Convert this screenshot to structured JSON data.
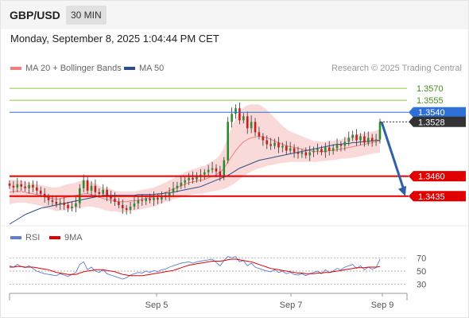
{
  "header": {
    "pair": "GBP/USD",
    "timeframe": "30 MIN"
  },
  "datetime": "Monday, September 8, 2025 1:04:44 PM CET",
  "legend": {
    "main": [
      {
        "label": "MA 20 + Bollinger Bands",
        "color": "#f08080"
      },
      {
        "label": "MA 50",
        "color": "#2c4f8c"
      }
    ],
    "rsi": [
      {
        "label": "RSI",
        "color": "#5b7fd4"
      },
      {
        "label": "9MA",
        "color": "#e00000"
      }
    ]
  },
  "credit": "Research © 2025 Trading Central",
  "chart_data": {
    "type": "candlestick",
    "ylim": [
      1.34,
      1.3585
    ],
    "levels": [
      {
        "value": 1.357,
        "label": "1.3570",
        "color": "#8cc63f",
        "kind": "line"
      },
      {
        "value": 1.3555,
        "label": "1.3555",
        "color": "#8cc63f",
        "kind": "line"
      },
      {
        "value": 1.354,
        "label": "1.3540",
        "color": "#2e6fd8",
        "kind": "tag"
      },
      {
        "value": 1.3528,
        "label": "1.3528",
        "color": "#333333",
        "kind": "tag"
      },
      {
        "value": 1.346,
        "label": "1.3460",
        "color": "#e00000",
        "kind": "tag"
      },
      {
        "value": 1.3435,
        "label": "1.3435",
        "color": "#e00000",
        "kind": "tag"
      }
    ],
    "x_ticks": [
      "Sep 5",
      "Sep 7",
      "Sep 9"
    ],
    "closes": [
      1.3448,
      1.3446,
      1.345,
      1.3447,
      1.3445,
      1.3449,
      1.3446,
      1.3442,
      1.3438,
      1.3434,
      1.343,
      1.3428,
      1.3425,
      1.3427,
      1.3424,
      1.342,
      1.3422,
      1.3426,
      1.3445,
      1.3455,
      1.3442,
      1.3448,
      1.344,
      1.3438,
      1.3443,
      1.3436,
      1.3432,
      1.3428,
      1.3424,
      1.342,
      1.3418,
      1.3422,
      1.3426,
      1.343,
      1.3429,
      1.3432,
      1.343,
      1.3433,
      1.3431,
      1.3434,
      1.3436,
      1.344,
      1.3445,
      1.3448,
      1.3452,
      1.3455,
      1.3458,
      1.3456,
      1.346,
      1.3462,
      1.3465,
      1.3468,
      1.347,
      1.3466,
      1.346,
      1.348,
      1.3528,
      1.3538,
      1.3545,
      1.353,
      1.3535,
      1.352,
      1.3528,
      1.3515,
      1.351,
      1.3505,
      1.35,
      1.3498,
      1.3502,
      1.3496,
      1.3498,
      1.3492,
      1.3495,
      1.349,
      1.3488,
      1.349,
      1.3486,
      1.349,
      1.3492,
      1.3494,
      1.349,
      1.3496,
      1.3492,
      1.3495,
      1.35,
      1.3498,
      1.3503,
      1.3508,
      1.3512,
      1.3505,
      1.351,
      1.3502,
      1.3508,
      1.3504,
      1.3506,
      1.3528
    ],
    "ma50": [
      1.34,
      1.3403,
      1.3406,
      1.3409,
      1.3412,
      1.3414,
      1.3416,
      1.3418,
      1.342,
      1.3421,
      1.3422,
      1.3423,
      1.3424,
      1.3425,
      1.3426,
      1.3427,
      1.3428,
      1.3429,
      1.343,
      1.3431,
      1.3432,
      1.3433,
      1.3434,
      1.3435,
      1.3436,
      1.3436,
      1.3436,
      1.3436,
      1.3436,
      1.3436,
      1.3436,
      1.3436,
      1.3436,
      1.3437,
      1.3437,
      1.3437,
      1.3437,
      1.3437,
      1.3438,
      1.3438,
      1.3439,
      1.3439,
      1.344,
      1.3441,
      1.3442,
      1.3443,
      1.3444,
      1.3445,
      1.3446,
      1.3447,
      1.3449,
      1.3451,
      1.3453,
      1.3455,
      1.3457,
      1.3459,
      1.3461,
      1.3464,
      1.3467,
      1.347,
      1.3472,
      1.3474,
      1.3476,
      1.3478,
      1.348,
      1.3481,
      1.3482,
      1.3483,
      1.3484,
      1.3485,
      1.3486,
      1.3487,
      1.3488,
      1.3489,
      1.349,
      1.3491,
      1.3492,
      1.3493,
      1.3494,
      1.3495,
      1.3496,
      1.3497,
      1.3498,
      1.3499,
      1.35,
      1.35,
      1.3501,
      1.3501,
      1.3502,
      1.3502,
      1.3503,
      1.3503,
      1.3504,
      1.3504,
      1.3505,
      1.3505
    ],
    "ma20": [
      1.344,
      1.3441,
      1.3441,
      1.3441,
      1.344,
      1.3439,
      1.3438,
      1.3437,
      1.3436,
      1.3434,
      1.3433,
      1.3432,
      1.3431,
      1.3432,
      1.3433,
      1.3434,
      1.3435,
      1.3436,
      1.3437,
      1.3438,
      1.3438,
      1.3437,
      1.3436,
      1.3434,
      1.3432,
      1.3431,
      1.343,
      1.3429,
      1.3428,
      1.3428,
      1.3428,
      1.3429,
      1.3429,
      1.343,
      1.3431,
      1.3432,
      1.3433,
      1.3434,
      1.3436,
      1.3438,
      1.344,
      1.3442,
      1.3444,
      1.3446,
      1.3448,
      1.345,
      1.3452,
      1.3453,
      1.3454,
      1.3455,
      1.3456,
      1.3458,
      1.346,
      1.3462,
      1.3465,
      1.347,
      1.3478,
      1.3485,
      1.3492,
      1.3498,
      1.3503,
      1.3506,
      1.3508,
      1.3509,
      1.351,
      1.3509,
      1.3508,
      1.3506,
      1.3504,
      1.3502,
      1.35,
      1.3498,
      1.3497,
      1.3496,
      1.3495,
      1.3494,
      1.3493,
      1.3492,
      1.3491,
      1.3491,
      1.3491,
      1.3491,
      1.3492,
      1.3492,
      1.3493,
      1.3494,
      1.3495,
      1.3496,
      1.3497,
      1.3498,
      1.3499,
      1.35,
      1.3501,
      1.3502,
      1.3503,
      1.3504
    ],
    "bb_width": [
      0.0015,
      0.0015,
      0.0014,
      0.0014,
      0.0013,
      0.0013,
      0.0013,
      0.0013,
      0.0013,
      0.0014,
      0.0014,
      0.0014,
      0.0015,
      0.0015,
      0.0016,
      0.0016,
      0.0016,
      0.0016,
      0.0017,
      0.0017,
      0.0016,
      0.0015,
      0.0015,
      0.0014,
      0.0014,
      0.0014,
      0.0014,
      0.0013,
      0.0013,
      0.0013,
      0.0013,
      0.0012,
      0.0012,
      0.0012,
      0.0012,
      0.0012,
      0.0012,
      0.0012,
      0.0012,
      0.0012,
      0.0012,
      0.0013,
      0.0013,
      0.0014,
      0.0014,
      0.0015,
      0.0015,
      0.0016,
      0.0016,
      0.0017,
      0.0017,
      0.0018,
      0.0019,
      0.002,
      0.0022,
      0.0026,
      0.0032,
      0.0036,
      0.004,
      0.0042,
      0.0043,
      0.0043,
      0.0042,
      0.0041,
      0.004,
      0.0038,
      0.0035,
      0.0032,
      0.0029,
      0.0026,
      0.0023,
      0.0021,
      0.0019,
      0.0018,
      0.0017,
      0.0016,
      0.0015,
      0.0014,
      0.0013,
      0.0013,
      0.0012,
      0.0012,
      0.0012,
      0.0012,
      0.0012,
      0.0012,
      0.0013,
      0.0013,
      0.0014,
      0.0014,
      0.0014,
      0.0014,
      0.0014,
      0.0014,
      0.0014,
      0.0015
    ],
    "forecast": {
      "from": 1.3528,
      "to": 1.3435
    },
    "rsi": {
      "ylim": [
        20,
        80
      ],
      "ticks": [
        70,
        50,
        30
      ],
      "rsi": [
        58,
        56,
        60,
        57,
        55,
        58,
        54,
        50,
        48,
        46,
        45,
        44,
        43,
        46,
        44,
        42,
        45,
        48,
        60,
        64,
        52,
        56,
        50,
        48,
        52,
        46,
        44,
        42,
        40,
        38,
        40,
        44,
        46,
        48,
        47,
        50,
        48,
        51,
        49,
        52,
        53,
        56,
        58,
        60,
        62,
        63,
        64,
        62,
        64,
        65,
        66,
        67,
        68,
        63,
        58,
        66,
        72,
        70,
        72,
        64,
        66,
        58,
        62,
        56,
        54,
        52,
        50,
        49,
        52,
        48,
        50,
        46,
        48,
        45,
        44,
        46,
        43,
        46,
        48,
        50,
        46,
        52,
        48,
        50,
        54,
        52,
        56,
        58,
        60,
        54,
        58,
        52,
        56,
        53,
        55,
        68
      ],
      "ma9": [
        56,
        56,
        57,
        57,
        56,
        56,
        56,
        55,
        54,
        53,
        52,
        50,
        48,
        47,
        46,
        45,
        45,
        45,
        47,
        49,
        50,
        51,
        52,
        52,
        52,
        51,
        50,
        49,
        47,
        45,
        44,
        43,
        43,
        43,
        43,
        44,
        45,
        46,
        47,
        48,
        49,
        50,
        51,
        53,
        55,
        57,
        59,
        60,
        61,
        62,
        63,
        64,
        65,
        65,
        65,
        66,
        67,
        68,
        68,
        67,
        66,
        65,
        64,
        62,
        60,
        58,
        56,
        54,
        53,
        52,
        51,
        50,
        49,
        48,
        47,
        47,
        46,
        46,
        46,
        47,
        47,
        48,
        48,
        49,
        50,
        51,
        52,
        53,
        54,
        55,
        55,
        55,
        56,
        56,
        56,
        57
      ]
    }
  }
}
